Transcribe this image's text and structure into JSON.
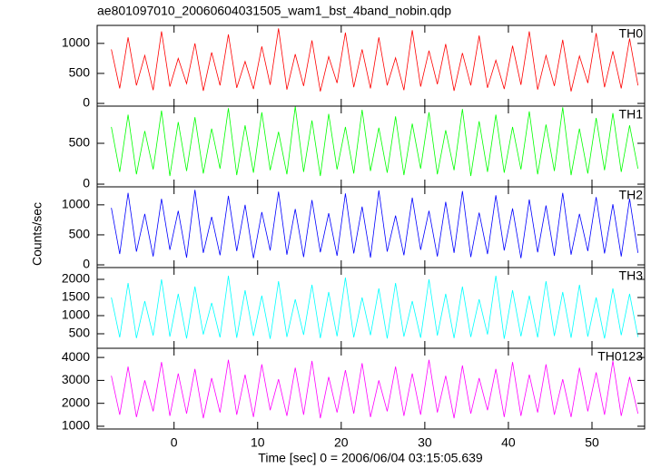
{
  "chart_data": {
    "type": "line",
    "title": "ae801097010_20060604031505_wam1_bst_4band_nobin.qdp",
    "xlabel": "Time [sec] 0 = 2006/06/04 03:15:05.639",
    "ylabel": "Counts/sec",
    "xlim": [
      -9.2,
      56.3
    ],
    "xticks": [
      0,
      10,
      20,
      30,
      40,
      50
    ],
    "x": [
      -7.5,
      -6.5,
      -5.5,
      -4.5,
      -3.5,
      -2.5,
      -1.5,
      -0.5,
      0.5,
      1.5,
      2.5,
      3.5,
      4.5,
      5.5,
      6.5,
      7.5,
      8.5,
      9.5,
      10.5,
      11.5,
      12.5,
      13.5,
      14.5,
      15.5,
      16.5,
      17.5,
      18.5,
      19.5,
      20.5,
      21.5,
      22.5,
      23.5,
      24.5,
      25.5,
      26.5,
      27.5,
      28.5,
      29.5,
      30.5,
      31.5,
      32.5,
      33.5,
      34.5,
      35.5,
      36.5,
      37.5,
      38.5,
      39.5,
      40.5,
      41.5,
      42.5,
      43.5,
      44.5,
      45.5,
      46.5,
      47.5,
      48.5,
      49.5,
      50.5,
      51.5,
      52.5,
      53.5,
      54.5,
      55.5
    ],
    "series": [
      {
        "name": "TH0",
        "color": "#ff0000",
        "ylim": [
          -45,
          1300
        ],
        "yticks": [
          0,
          500,
          1000
        ],
        "values": [
          900,
          250,
          1100,
          300,
          800,
          220,
          1200,
          280,
          750,
          330,
          1000,
          210,
          850,
          300,
          1150,
          260,
          700,
          240,
          950,
          310,
          1250,
          230,
          820,
          290,
          1050,
          200,
          780,
          340,
          1180,
          270,
          900,
          250,
          1100,
          300,
          760,
          220,
          1220,
          280,
          880,
          320,
          990,
          210,
          840,
          300,
          1130,
          260,
          720,
          240,
          960,
          310,
          1200,
          230,
          800,
          290,
          1060,
          200,
          790,
          340,
          1170,
          270,
          870,
          250,
          1080,
          300
        ]
      },
      {
        "name": "TH1",
        "color": "#00ff00",
        "ylim": [
          -33,
          955
        ],
        "yticks": [
          0,
          500
        ],
        "values": [
          700,
          150,
          850,
          120,
          650,
          180,
          900,
          100,
          760,
          160,
          820,
          130,
          680,
          190,
          930,
          110,
          720,
          140,
          880,
          170,
          640,
          120,
          950,
          150,
          780,
          100,
          860,
          180,
          700,
          130,
          910,
          160,
          690,
          140,
          830,
          110,
          740,
          190,
          880,
          120,
          660,
          170,
          920,
          100,
          770,
          150,
          850,
          140,
          700,
          180,
          890,
          120,
          730,
          160,
          940,
          110,
          680,
          130,
          810,
          170,
          870,
          150,
          720,
          190
        ]
      },
      {
        "name": "TH2",
        "color": "#0000ff",
        "ylim": [
          -45,
          1300
        ],
        "yticks": [
          0,
          500,
          1000
        ],
        "values": [
          950,
          180,
          1200,
          220,
          850,
          140,
          1100,
          250,
          900,
          120,
          1250,
          200,
          800,
          160,
          1150,
          230,
          1000,
          110,
          880,
          240,
          1220,
          170,
          930,
          130,
          1080,
          210,
          860,
          150,
          1190,
          190,
          970,
          120,
          1240,
          220,
          820,
          160,
          1120,
          250,
          900,
          140,
          1050,
          200,
          1230,
          130,
          870,
          180,
          1160,
          240,
          940,
          110,
          1090,
          210,
          990,
          150,
          1200,
          170,
          850,
          230,
          1130,
          190,
          1010,
          140,
          1100,
          200
        ]
      },
      {
        "name": "TH3",
        "color": "#00ffff",
        "ylim": [
          100,
          2325
        ],
        "yticks": [
          500,
          1000,
          1500,
          2000
        ],
        "values": [
          1500,
          400,
          1900,
          380,
          1400,
          450,
          2000,
          420,
          1600,
          370,
          1800,
          480,
          1350,
          400,
          2100,
          390,
          1700,
          440,
          1550,
          360,
          1950,
          410,
          1450,
          470,
          1850,
          380,
          1650,
          430,
          2050,
          400,
          1500,
          460,
          1750,
          370,
          1900,
          420,
          1400,
          390,
          2000,
          450,
          1600,
          380,
          1800,
          410,
          1450,
          480,
          2100,
          360,
          1700,
          430,
          1550,
          400,
          1950,
          440,
          1650,
          390,
          1850,
          420,
          1500,
          370,
          1750,
          460,
          1600,
          410
        ]
      },
      {
        "name": "TH0123",
        "color": "#ff00ff",
        "ylim": [
          880,
          4400
        ],
        "yticks": [
          1000,
          2000,
          3000,
          4000
        ],
        "values": [
          3200,
          1500,
          3600,
          1400,
          3000,
          1650,
          3800,
          1450,
          3300,
          1550,
          3500,
          1350,
          3100,
          1600,
          3900,
          1500,
          3250,
          1400,
          3700,
          1700,
          3050,
          1450,
          3550,
          1500,
          3850,
          1350,
          3150,
          1600,
          3450,
          1550,
          3750,
          1400,
          3000,
          1650,
          3600,
          1450,
          3300,
          1500,
          3900,
          1600,
          3200,
          1350,
          3650,
          1550,
          3100,
          1700,
          3500,
          1400,
          3800,
          1450,
          3250,
          1600,
          3700,
          1500,
          3050,
          1400,
          3550,
          1650,
          3350,
          1500,
          3850,
          1450,
          3150,
          1550
        ]
      }
    ]
  }
}
